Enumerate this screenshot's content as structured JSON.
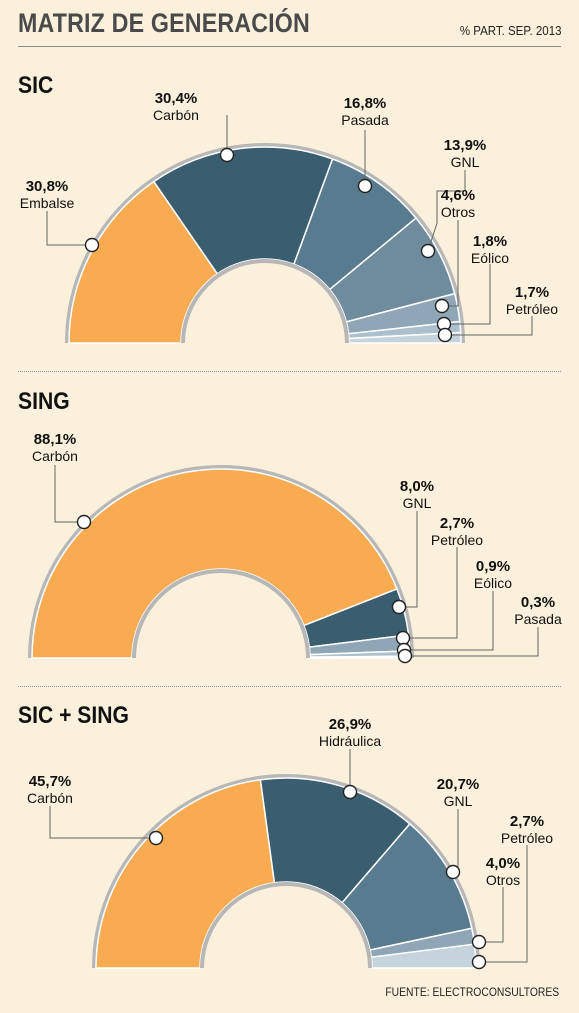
{
  "title": "MATRIZ DE GENERACIÓN",
  "subtitle": "% PART. SEP. 2013",
  "source": "FUENTE: ELECTROCONSULTORES",
  "colors": {
    "background": "#fbf0dc",
    "orange": "#f8ab50",
    "dark": "#3a5d70",
    "mid": "#587b8f",
    "steel": "#6f8b9e",
    "light": "#8ea6b6",
    "pale": "#abbfcc",
    "palest": "#c4d3dc"
  },
  "chart_data": [
    {
      "type": "semi-donut",
      "title": "SIC",
      "unit": "%",
      "categories": [
        "Embalse",
        "Carbón",
        "Pasada",
        "GNL",
        "Otros",
        "Eólico",
        "Petróleo"
      ],
      "values": [
        30.8,
        30.4,
        16.8,
        13.9,
        4.6,
        1.8,
        1.7
      ],
      "labels": [
        "30,8%",
        "30,4%",
        "16,8%",
        "13,9%",
        "4,6%",
        "1,8%",
        "1,7%"
      ],
      "colors": [
        "#f8ab50",
        "#3a5d70",
        "#587b8f",
        "#6f8b9e",
        "#8ea6b6",
        "#abbfcc",
        "#c4d3dc"
      ]
    },
    {
      "type": "semi-donut",
      "title": "SING",
      "unit": "%",
      "categories": [
        "Carbón",
        "GNL",
        "Petróleo",
        "Eólico",
        "Pasada"
      ],
      "values": [
        88.1,
        8.0,
        2.7,
        0.9,
        0.3
      ],
      "labels": [
        "88,1%",
        "8,0%",
        "2,7%",
        "0,9%",
        "0,3%"
      ],
      "colors": [
        "#f8ab50",
        "#3a5d70",
        "#8ea6b6",
        "#abbfcc",
        "#c4d3dc"
      ]
    },
    {
      "type": "semi-donut",
      "title": "SIC + SING",
      "unit": "%",
      "categories": [
        "Carbón",
        "Hidráulica",
        "GNL",
        "Petróleo",
        "Otros"
      ],
      "values": [
        45.7,
        26.9,
        20.7,
        2.7,
        4.0
      ],
      "labels": [
        "45,7%",
        "26,9%",
        "20,7%",
        "2,7%",
        "4,0%"
      ],
      "colors": [
        "#f8ab50",
        "#3a5d70",
        "#587b8f",
        "#8ea6b6",
        "#c4d3dc"
      ]
    }
  ]
}
